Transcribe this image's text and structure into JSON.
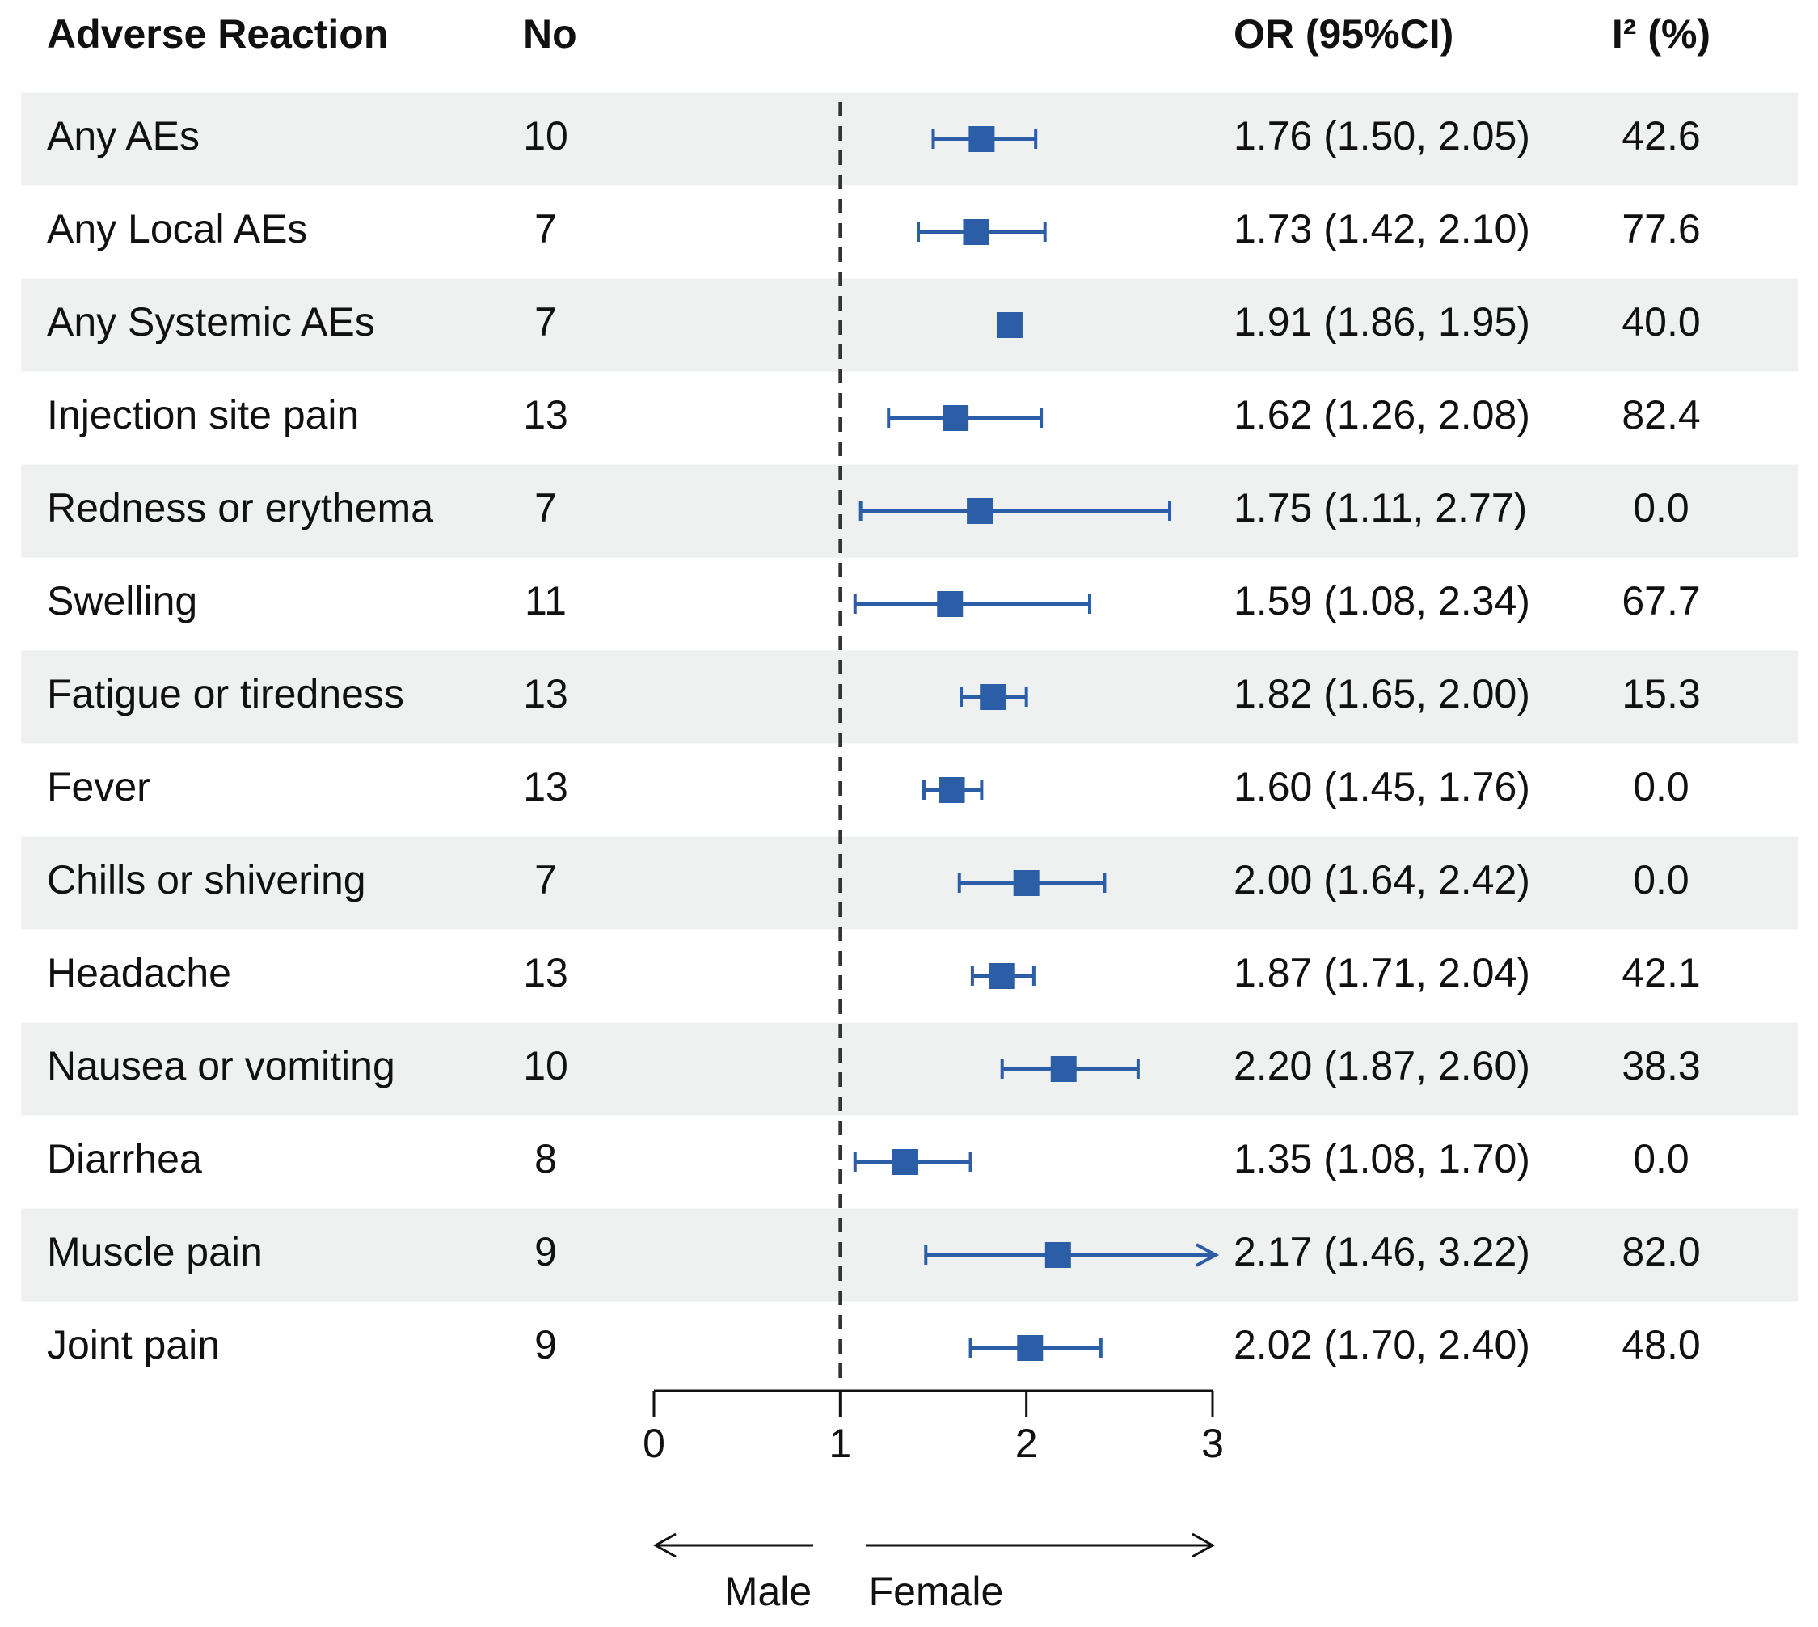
{
  "chart_data": {
    "type": "forest",
    "columns": [
      "Adverse Reaction",
      "No",
      "OR (95%CI)",
      "I² (%)"
    ],
    "categories": [
      "Any AEs",
      "Any Local AEs",
      "Any Systemic AEs",
      "Injection site pain",
      "Redness or erythema",
      "Swelling",
      "Fatigue or tiredness",
      "Fever",
      "Chills or shivering",
      "Headache",
      "Nausea or vomiting",
      "Diarrhea",
      "Muscle pain",
      "Joint pain"
    ],
    "n": [
      10,
      7,
      7,
      13,
      7,
      11,
      13,
      13,
      7,
      13,
      10,
      8,
      9,
      9
    ],
    "values": [
      1.76,
      1.73,
      1.91,
      1.62,
      1.75,
      1.59,
      1.82,
      1.6,
      2.0,
      1.87,
      2.2,
      1.35,
      2.17,
      2.02
    ],
    "lower": [
      1.5,
      1.42,
      1.86,
      1.26,
      1.11,
      1.08,
      1.65,
      1.45,
      1.64,
      1.71,
      1.87,
      1.08,
      1.46,
      1.7
    ],
    "upper": [
      2.05,
      2.1,
      1.95,
      2.08,
      2.77,
      2.34,
      2.0,
      1.76,
      2.42,
      2.04,
      2.6,
      1.7,
      3.22,
      2.4
    ],
    "ci_labels": [
      "1.76 (1.50, 2.05)",
      "1.73 (1.42, 2.10)",
      "1.91 (1.86, 1.95)",
      "1.62 (1.26, 2.08)",
      "1.75 (1.11, 2.77)",
      "1.59 (1.08, 2.34)",
      "1.82 (1.65, 2.00)",
      "1.60 (1.45, 1.76)",
      "2.00 (1.64, 2.42)",
      "1.87 (1.71, 2.04)",
      "2.20 (1.87, 2.60)",
      "1.35 (1.08, 1.70)",
      "2.17 (1.46, 3.22)",
      "2.02 (1.70, 2.40)"
    ],
    "i2": [
      "42.6",
      "77.6",
      "40.0",
      "82.4",
      "0.0",
      "67.7",
      "15.3",
      "0.0",
      "0.0",
      "42.1",
      "38.3",
      "0.0",
      "82.0",
      "48.0"
    ],
    "xlim": [
      0,
      3
    ],
    "xticks": [
      0,
      1,
      2,
      3
    ],
    "ref_line": 1,
    "direction_labels": [
      "Male",
      "Female"
    ],
    "color": "#2b5ea7"
  }
}
